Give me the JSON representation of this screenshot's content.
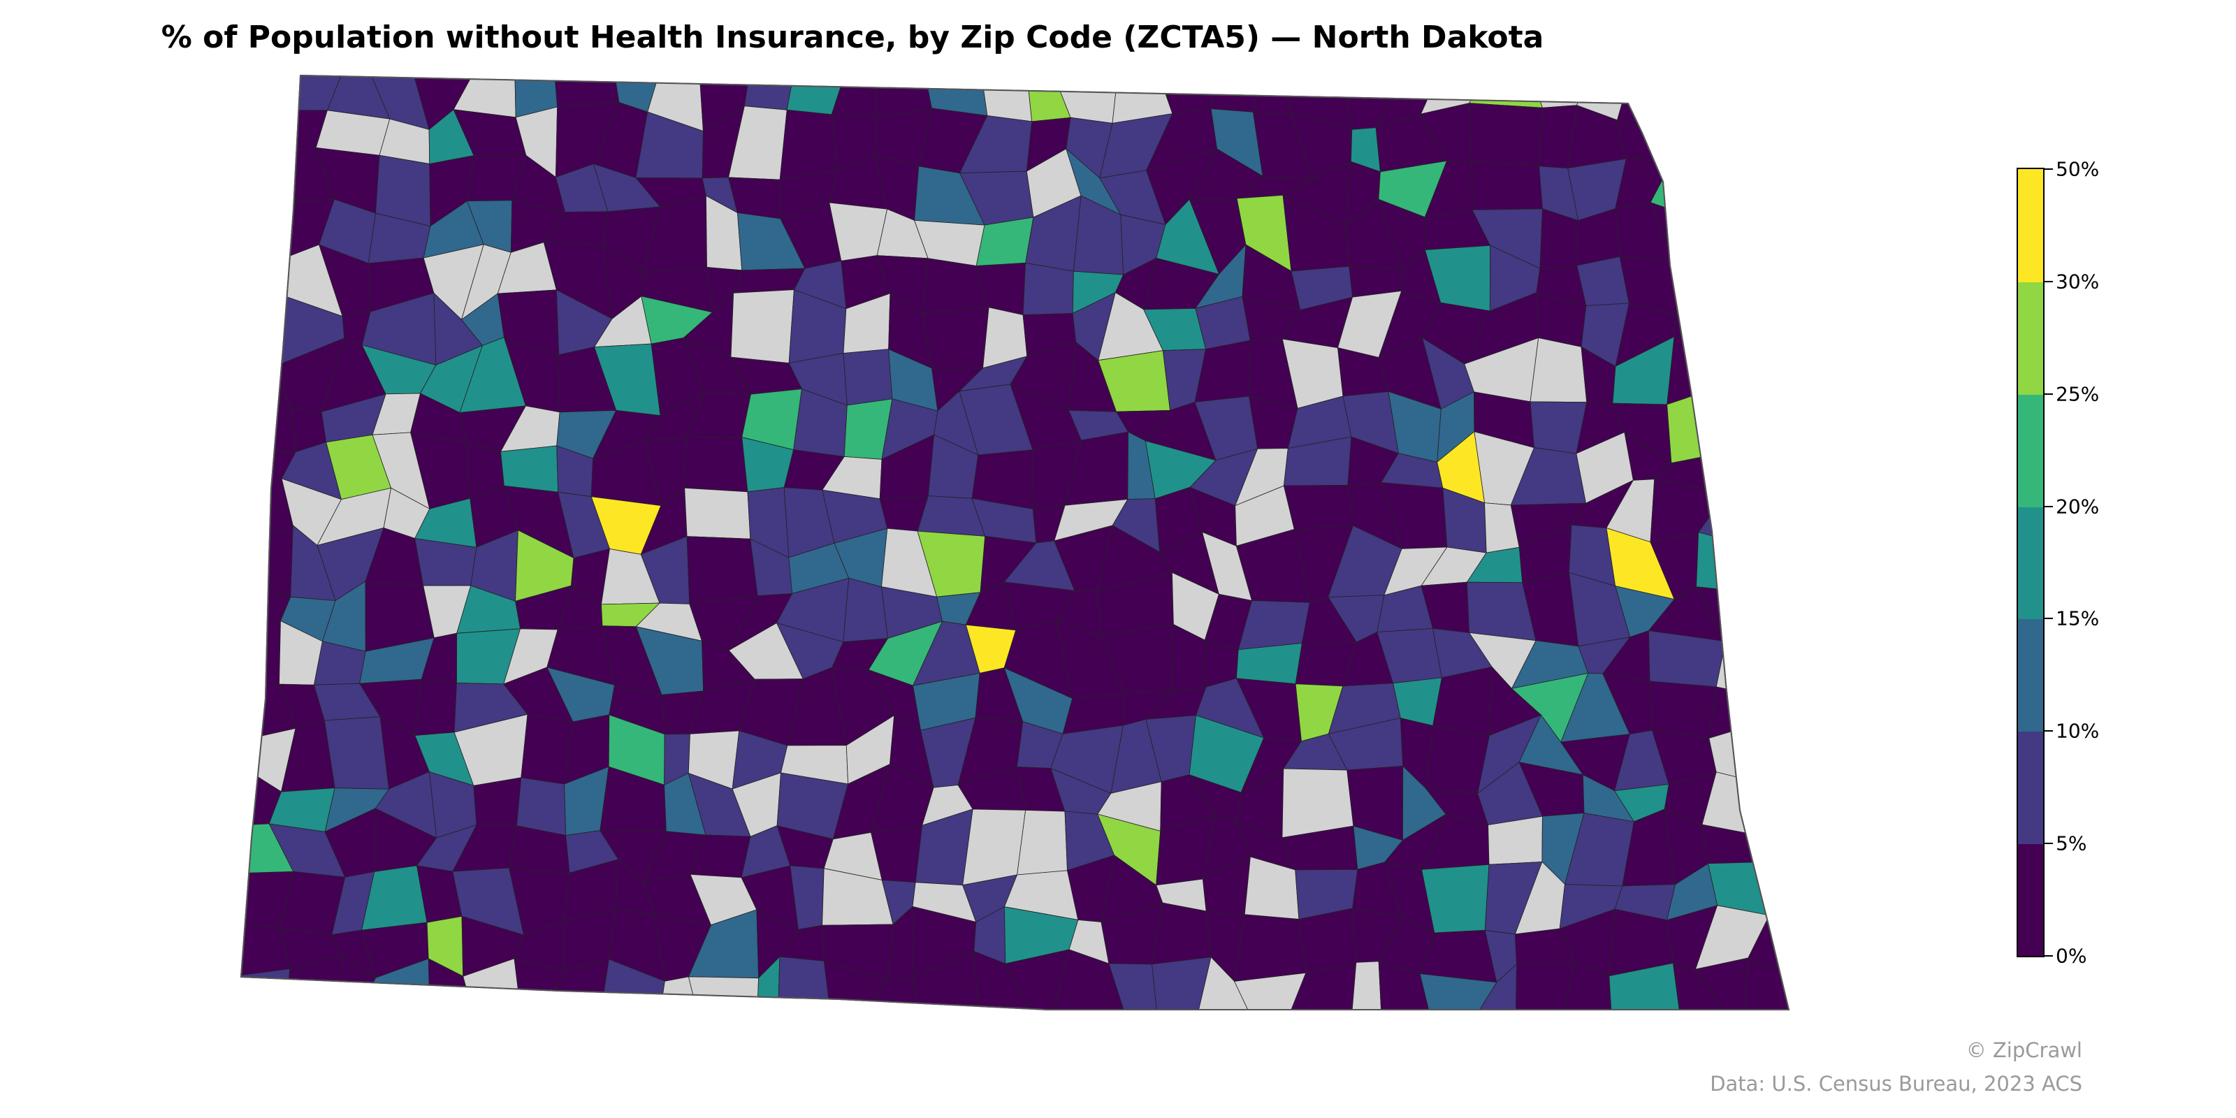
{
  "title": "% of Population without Health Insurance, by Zip Code (ZCTA5) — North Dakota",
  "colors": {
    "no_data": "#d3d3d3",
    "background_region": "#e6e6e6",
    "border": "#333333",
    "bins": [
      "#440154",
      "#443983",
      "#31688e",
      "#21918c",
      "#35b779",
      "#90d743",
      "#fde725"
    ]
  },
  "legend": {
    "ticks": [
      "0%",
      "5%",
      "10%",
      "15%",
      "20%",
      "25%",
      "30%",
      "50%"
    ]
  },
  "footer": {
    "copyright": "© ZipCrawl",
    "source": "Data: U.S. Census Bureau, 2023 ACS"
  }
}
